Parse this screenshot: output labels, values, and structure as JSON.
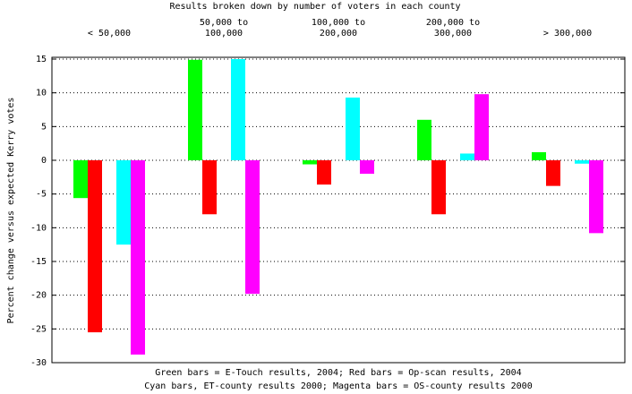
{
  "chart_data": {
    "type": "bar",
    "title": "Results broken down by number of voters in each county",
    "y_label": "Percent change versus expected Kerry votes",
    "notes": [
      "Green bars = E-Touch results, 2004; Red bars = Op-scan results, 2004",
      "Cyan bars, ET-county results 2000; Magenta bars = OS-county results 2000"
    ],
    "categories": [
      "< 50,000",
      "50,000 to\n100,000",
      "100,000 to\n200,000",
      "200,000 to\n300,000",
      "> 300,000"
    ],
    "series": [
      {
        "color": "#00ff00",
        "values": [
          -5.6,
          14.9,
          -0.6,
          6,
          1.2
        ]
      },
      {
        "color": "#ff0000",
        "values": [
          -25.5,
          -8,
          -3.6,
          -8,
          -3.8
        ]
      },
      {
        "color": "#00ffff",
        "values": [
          -12.5,
          15,
          9.3,
          1,
          -0.5
        ]
      },
      {
        "color": "#ff00ff",
        "values": [
          -28.8,
          -19.8,
          -2,
          9.8,
          -10.8
        ]
      }
    ],
    "ylim": [
      -30,
      15
    ],
    "yticks": [
      -30,
      -25,
      -20,
      -15,
      -10,
      -5,
      0,
      5,
      10,
      15
    ],
    "grid": true
  }
}
